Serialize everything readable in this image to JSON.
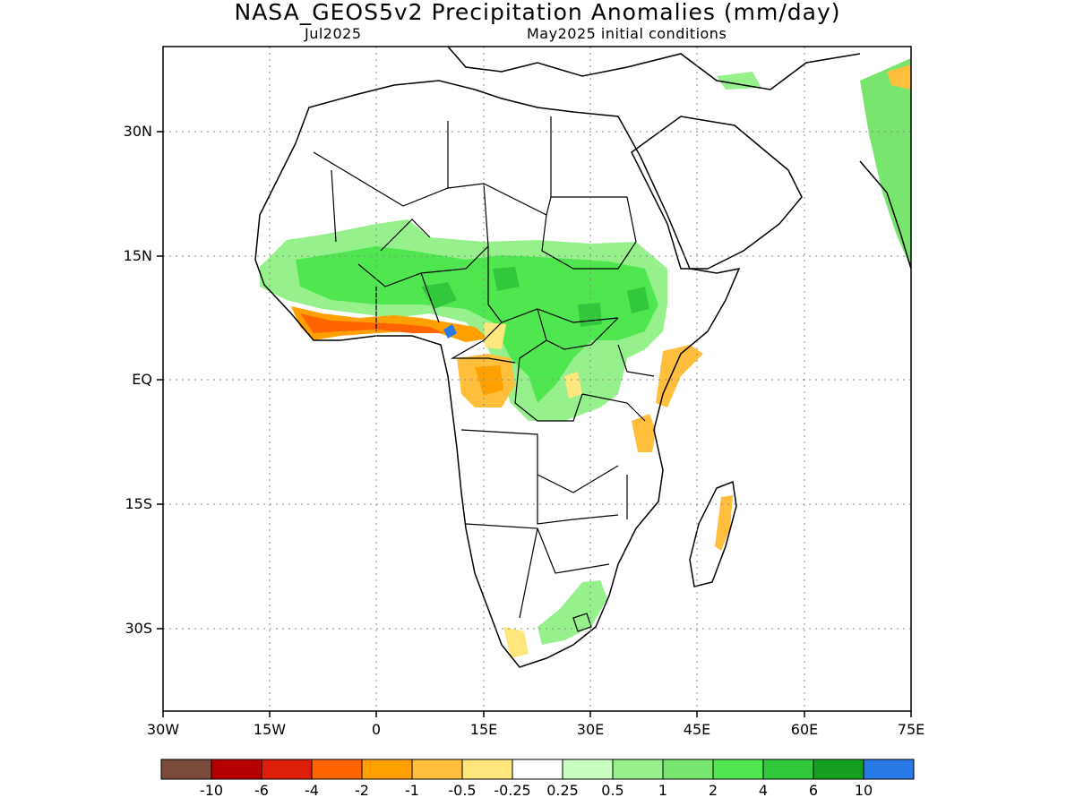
{
  "title": "NASA_GEOS5v2 Precipitation Anomalies (mm/day)",
  "subtitle_left": "Jul2025",
  "subtitle_right": "May2025 initial conditions",
  "lat_labels": [
    "30N",
    "15N",
    "EQ",
    "15S",
    "30S"
  ],
  "lon_labels": [
    "30W",
    "15W",
    "0",
    "15E",
    "30E",
    "45E",
    "60E",
    "75E"
  ],
  "colorbar": {
    "colors": [
      "#7a4a3a",
      "#b40000",
      "#dc1e0a",
      "#ff6400",
      "#ffa000",
      "#ffbe3c",
      "#ffe67d",
      "#ffffff",
      "#c8ffc0",
      "#96f08c",
      "#78e66e",
      "#50e650",
      "#32c83c",
      "#14a01e",
      "#2878e6"
    ],
    "labels": [
      "-10",
      "-6",
      "-4",
      "-2",
      "-1",
      "-0.5",
      "-0.25",
      "0.25",
      "0.5",
      "1",
      "2",
      "4",
      "6",
      "10"
    ]
  }
}
